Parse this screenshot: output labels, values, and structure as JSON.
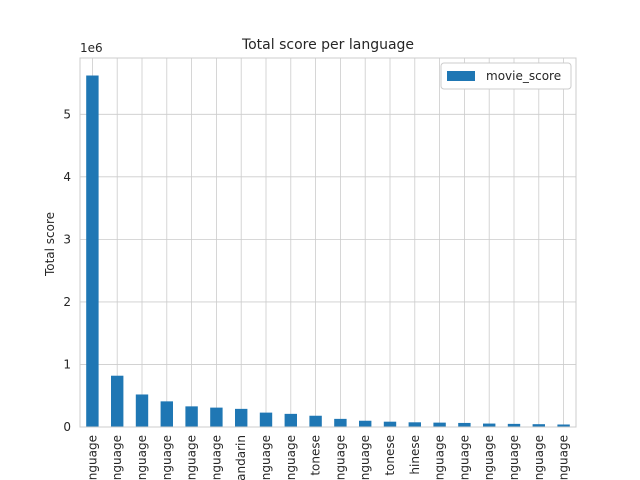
{
  "chart_data": {
    "type": "bar",
    "title": "Total score per language",
    "xlabel": "",
    "ylabel": "Total score",
    "offset_label": "1e6",
    "ylim": [
      0,
      5.9
    ],
    "yticks": [
      0,
      1,
      2,
      3,
      4,
      5
    ],
    "grid": true,
    "legend_position": "top-right",
    "colors": {
      "bar": "#1f77b4",
      "grid": "#cccccc",
      "axis": "#cccccc"
    },
    "categories": [
      "nguage",
      "nguage",
      "nguage",
      "nguage",
      "nguage",
      "nguage",
      "andarin",
      "nguage",
      "nguage",
      "tonese",
      "nguage",
      "nguage",
      "tonese",
      "hinese",
      "nguage",
      "nguage",
      "nguage",
      "nguage",
      "nguage",
      "nguage"
    ],
    "series": [
      {
        "name": "movie_score",
        "values": [
          5.62,
          0.82,
          0.52,
          0.41,
          0.33,
          0.31,
          0.29,
          0.23,
          0.21,
          0.18,
          0.13,
          0.1,
          0.085,
          0.075,
          0.07,
          0.065,
          0.055,
          0.05,
          0.045,
          0.04
        ]
      }
    ]
  }
}
